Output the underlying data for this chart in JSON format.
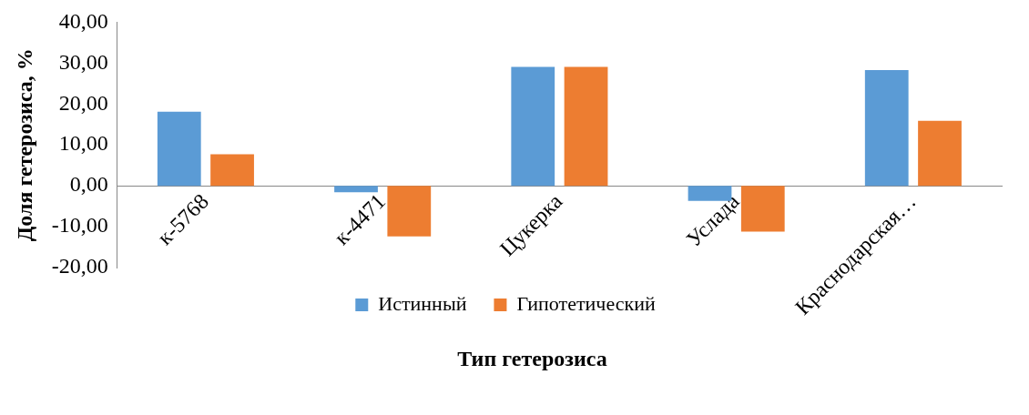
{
  "chart_data": {
    "type": "bar",
    "xlabel": "Тип гетерозиса",
    "ylabel": "Доля гетерозиса, %",
    "categories": [
      "к-5768",
      "к-4471",
      "Цукерка",
      "Услада",
      "Краснодарская…"
    ],
    "series": [
      {
        "name": "Истинный",
        "color": "#5b9bd5",
        "values": [
          18.1,
          -1.6,
          29.1,
          -3.7,
          28.3
        ]
      },
      {
        "name": "Гипотетический",
        "color": "#ed7d31",
        "values": [
          7.7,
          -12.4,
          29.1,
          -11.2,
          15.9
        ]
      }
    ],
    "ylim": [
      -20,
      40
    ],
    "yticks": [
      {
        "value": -20,
        "label": "-20,00"
      },
      {
        "value": -10,
        "label": "-10,00"
      },
      {
        "value": 0,
        "label": "0,00"
      },
      {
        "value": 10,
        "label": "10,00"
      },
      {
        "value": 20,
        "label": "20,00"
      },
      {
        "value": 30,
        "label": "30,00"
      },
      {
        "value": 40,
        "label": "40,00"
      }
    ],
    "grid": false,
    "legend": "bottom"
  }
}
